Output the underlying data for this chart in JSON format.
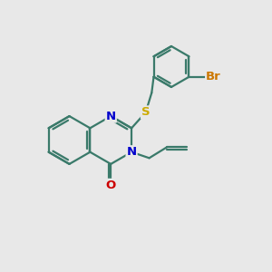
{
  "bg_color": "#e8e8e8",
  "bond_color": "#3a7a6a",
  "bond_width": 1.6,
  "atom_colors": {
    "N": "#0000cc",
    "O": "#cc0000",
    "S": "#ccaa00",
    "Br": "#cc7700"
  },
  "font_size": 9.5,
  "fig_size": [
    3.0,
    3.0
  ],
  "dpi": 100,
  "xlim": [
    0,
    10
  ],
  "ylim": [
    0,
    10
  ]
}
